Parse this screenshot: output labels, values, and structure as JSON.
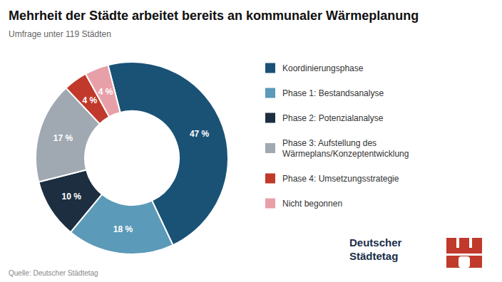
{
  "chart_data": {
    "type": "donut",
    "title": "Mehrheit der Städte arbeitet bereits an kommunaler Wärmeplanung",
    "subtitle": "Umfrage unter 119 Städten",
    "source": "Quelle: Deutscher Städtetag",
    "annotations": [
      "Deutscher\nStädtetag"
    ],
    "categories": [
      "Koordinierungsphase",
      "Phase 1: Bestandsanalyse",
      "Phase 2: Potenzialanalyse",
      "Phase 3: Aufstellung des\nWärmeplans/Konzeptentwicklung",
      "Phase 4: Umsetzungsstrategie",
      "Nicht begonnen"
    ],
    "values": [
      47,
      18,
      10,
      17,
      4,
      4
    ],
    "value_labels": [
      "47 %",
      "18 %",
      "10 %",
      "17 %",
      "4 %",
      "4 %"
    ],
    "colors": [
      "#1a5276",
      "#5b9ab8",
      "#1c2e40",
      "#a0a9b2",
      "#c0392b",
      "#e8a0a8"
    ],
    "data_labels": true,
    "legend": "right"
  }
}
